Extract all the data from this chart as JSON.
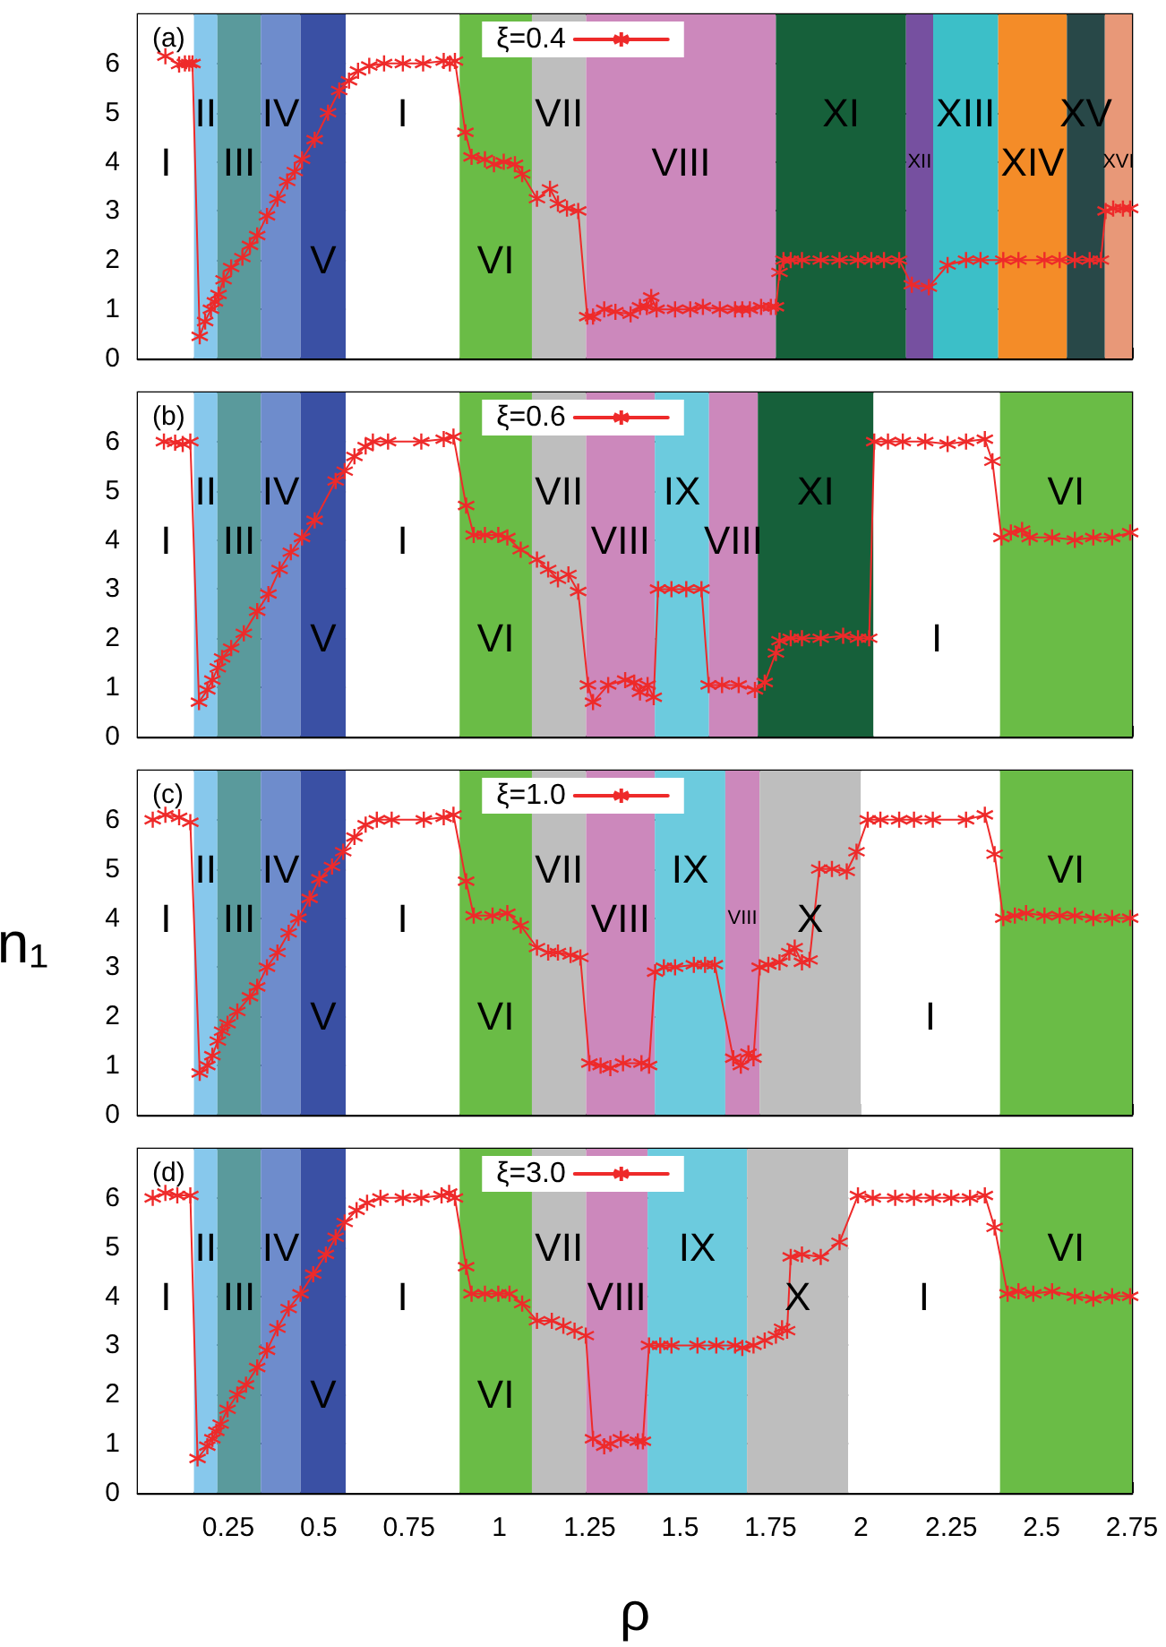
{
  "chart_data": [
    {
      "type": "line",
      "title": "(a)",
      "xlim": [
        0,
        2.75
      ],
      "ylim": [
        0,
        7
      ],
      "xticks": [
        0.25,
        0.5,
        0.75,
        1,
        1.25,
        1.5,
        1.75,
        2,
        2.25,
        2.5,
        2.75
      ],
      "yticks": [
        0,
        1,
        2,
        3,
        4,
        5,
        6
      ],
      "grid": "y",
      "legend": "top",
      "marker": "cross",
      "tick_labels": "y",
      "series": [
        {
          "name": "ξ=0.4",
          "color": "#ee2a2a",
          "x": [
            0.076,
            0.114,
            0.13,
            0.142,
            0.151,
            0.171,
            0.186,
            0.202,
            0.213,
            0.223,
            0.237,
            0.258,
            0.289,
            0.31,
            0.33,
            0.357,
            0.386,
            0.413,
            0.434,
            0.454,
            0.489,
            0.526,
            0.557,
            0.584,
            0.609,
            0.64,
            0.681,
            0.733,
            0.789,
            0.846,
            0.863,
            0.877,
            0.906,
            0.923,
            0.96,
            0.985,
            1.012,
            1.043,
            1.063,
            1.104,
            1.14,
            1.162,
            1.187,
            1.218,
            1.243,
            1.259,
            1.29,
            1.321,
            1.363,
            1.389,
            1.408,
            1.42,
            1.435,
            1.486,
            1.528,
            1.563,
            1.61,
            1.652,
            1.672,
            1.693,
            1.724,
            1.751,
            1.765,
            1.775,
            1.786,
            1.806,
            1.837,
            1.889,
            1.941,
            1.992,
            2.029,
            2.064,
            2.106,
            2.141,
            2.188,
            2.24,
            2.291,
            2.331,
            2.394,
            2.436,
            2.508,
            2.55,
            2.592,
            2.633,
            2.664,
            2.677,
            2.698,
            2.725,
            2.745
          ],
          "values": [
            6.15,
            5.98,
            6,
            6,
            6,
            0.45,
            0.75,
            1,
            1.15,
            1.3,
            1.6,
            1.85,
            2.05,
            2.3,
            2.5,
            2.9,
            3.25,
            3.6,
            3.8,
            4.05,
            4.45,
            5,
            5.45,
            5.65,
            5.85,
            5.95,
            6,
            6,
            6,
            6.05,
            6,
            6.05,
            4.6,
            4.1,
            4.05,
            3.95,
            4,
            3.95,
            3.75,
            3.25,
            3.45,
            3.15,
            3.05,
            3,
            0.85,
            0.85,
            1,
            0.95,
            0.9,
            1.05,
            1.05,
            1.25,
            1,
            1,
            1,
            1.05,
            1,
            1,
            1,
            1,
            1.05,
            1.05,
            1.05,
            1.75,
            2,
            2,
            2,
            2,
            2,
            2,
            2,
            2,
            2,
            1.5,
            1.45,
            1.9,
            2,
            2,
            2,
            2,
            2,
            2,
            2,
            2,
            2,
            3,
            3.05,
            3.05,
            3.05
          ]
        }
      ],
      "bands": [
        {
          "axis": "x",
          "from": 0,
          "to": 0.155,
          "color": "#ffffff",
          "label": "I"
        },
        {
          "axis": "x",
          "from": 0.155,
          "to": 0.22,
          "color": "#87c8ec",
          "label": "II"
        },
        {
          "axis": "x",
          "from": 0.22,
          "to": 0.34,
          "color": "#5a9a9c",
          "label": "III"
        },
        {
          "axis": "x",
          "from": 0.34,
          "to": 0.45,
          "color": "#6e8ccc",
          "label": "IV"
        },
        {
          "axis": "x",
          "from": 0.45,
          "to": 0.575,
          "color": "#3a50a4",
          "label": "V"
        },
        {
          "axis": "x",
          "from": 0.575,
          "to": 0.89,
          "color": "#ffffff",
          "label": "I"
        },
        {
          "axis": "x",
          "from": 0.89,
          "to": 1.09,
          "color": "#6abc46",
          "label": "VI"
        },
        {
          "axis": "x",
          "from": 1.09,
          "to": 1.24,
          "color": "#bebebe",
          "label": "VII"
        },
        {
          "axis": "x",
          "from": 1.24,
          "to": 1.765,
          "color": "#cc88bc",
          "label": "VIII"
        },
        {
          "axis": "x",
          "from": 1.765,
          "to": 2.125,
          "color": "#16603a",
          "label": "XI"
        },
        {
          "axis": "x",
          "from": 2.125,
          "to": 2.2,
          "color": "#7650a0",
          "label": "XII"
        },
        {
          "axis": "x",
          "from": 2.2,
          "to": 2.38,
          "color": "#3cbfc8",
          "label": "XIII"
        },
        {
          "axis": "x",
          "from": 2.38,
          "to": 2.57,
          "color": "#f48c28",
          "label": "XIV"
        },
        {
          "axis": "x",
          "from": 2.57,
          "to": 2.675,
          "color": "#284848",
          "label": "XV"
        },
        {
          "axis": "x",
          "from": 2.675,
          "to": 2.75,
          "color": "#e89878",
          "label": "XVI"
        }
      ]
    },
    {
      "type": "line",
      "title": "(b)",
      "xlim": [
        0,
        2.75
      ],
      "ylim": [
        0,
        7
      ],
      "xticks": [
        0.25,
        0.5,
        0.75,
        1,
        1.25,
        1.5,
        1.75,
        2,
        2.25,
        2.5,
        2.75
      ],
      "yticks": [
        0,
        1,
        2,
        3,
        4,
        5,
        6
      ],
      "grid": "y",
      "legend": "top",
      "marker": "cross",
      "tick_labels": "y",
      "series": [
        {
          "name": "ξ=0.6",
          "color": "#ee2a2a",
          "x": [
            0.072,
            0.103,
            0.124,
            0.145,
            0.169,
            0.192,
            0.206,
            0.221,
            0.233,
            0.258,
            0.293,
            0.33,
            0.361,
            0.392,
            0.423,
            0.454,
            0.489,
            0.547,
            0.572,
            0.599,
            0.63,
            0.65,
            0.692,
            0.784,
            0.846,
            0.873,
            0.908,
            0.929,
            0.96,
            0.997,
            1.022,
            1.059,
            1.104,
            1.135,
            1.162,
            1.191,
            1.218,
            1.245,
            1.259,
            1.301,
            1.348,
            1.373,
            1.389,
            1.41,
            1.427,
            1.439,
            1.476,
            1.517,
            1.559,
            1.579,
            1.616,
            1.662,
            1.707,
            1.734,
            1.765,
            1.775,
            1.806,
            1.837,
            1.889,
            1.951,
            1.992,
            2.023,
            2.037,
            2.075,
            2.116,
            2.178,
            2.24,
            2.291,
            2.343,
            2.364,
            2.389,
            2.415,
            2.446,
            2.467,
            2.529,
            2.592,
            2.643,
            2.695,
            2.745
          ],
          "values": [
            6,
            5.98,
            5.95,
            6,
            0.7,
            0.95,
            1.15,
            1.4,
            1.6,
            1.8,
            2.1,
            2.55,
            2.9,
            3.4,
            3.75,
            4.05,
            4.4,
            5.2,
            5.4,
            5.7,
            5.9,
            6,
            6,
            6,
            6.05,
            6.1,
            4.7,
            4.1,
            4.1,
            4.1,
            4.05,
            3.8,
            3.6,
            3.4,
            3.2,
            3.3,
            2.95,
            1.05,
            0.7,
            1.05,
            1.15,
            1.1,
            0.9,
            1.05,
            0.8,
            3,
            3,
            3,
            3,
            1.05,
            1.05,
            1.05,
            0.95,
            1.1,
            1.7,
            1.95,
            2,
            2,
            2,
            2.05,
            2,
            2,
            6,
            6,
            6,
            6,
            5.95,
            6,
            6.05,
            5.6,
            4.05,
            4.15,
            4.2,
            4.05,
            4.05,
            4,
            4.05,
            4.05,
            4.15
          ]
        }
      ],
      "bands": [
        {
          "axis": "x",
          "from": 0,
          "to": 0.155,
          "color": "#ffffff",
          "label": "I"
        },
        {
          "axis": "x",
          "from": 0.155,
          "to": 0.22,
          "color": "#87c8ec",
          "label": "II"
        },
        {
          "axis": "x",
          "from": 0.22,
          "to": 0.34,
          "color": "#5a9a9c",
          "label": "III"
        },
        {
          "axis": "x",
          "from": 0.34,
          "to": 0.45,
          "color": "#6e8ccc",
          "label": "IV"
        },
        {
          "axis": "x",
          "from": 0.45,
          "to": 0.575,
          "color": "#3a50a4",
          "label": "V"
        },
        {
          "axis": "x",
          "from": 0.575,
          "to": 0.89,
          "color": "#ffffff",
          "label": "I"
        },
        {
          "axis": "x",
          "from": 0.89,
          "to": 1.09,
          "color": "#6abc46",
          "label": "VI"
        },
        {
          "axis": "x",
          "from": 1.09,
          "to": 1.24,
          "color": "#bebebe",
          "label": "VII"
        },
        {
          "axis": "x",
          "from": 1.24,
          "to": 1.43,
          "color": "#cc88bc",
          "label": "VIII"
        },
        {
          "axis": "x",
          "from": 1.43,
          "to": 1.58,
          "color": "#6ccbde",
          "label": "IX"
        },
        {
          "axis": "x",
          "from": 1.58,
          "to": 1.715,
          "color": "#cc88bc",
          "label": "VIII"
        },
        {
          "axis": "x",
          "from": 1.715,
          "to": 2.035,
          "color": "#16603a",
          "label": "XI"
        },
        {
          "axis": "x",
          "from": 2.035,
          "to": 2.385,
          "color": "#ffffff",
          "label": "I"
        },
        {
          "axis": "x",
          "from": 2.385,
          "to": 2.75,
          "color": "#6abc46",
          "label": "VI"
        }
      ]
    },
    {
      "type": "line",
      "title": "(c)",
      "ylabel": "n₁",
      "xlim": [
        0,
        2.75
      ],
      "ylim": [
        0,
        7
      ],
      "xticks": [
        0.25,
        0.5,
        0.75,
        1,
        1.25,
        1.5,
        1.75,
        2,
        2.25,
        2.5,
        2.75
      ],
      "yticks": [
        0,
        1,
        2,
        3,
        4,
        5,
        6
      ],
      "grid": "y",
      "legend": "top",
      "marker": "cross",
      "tick_labels": "y",
      "series": [
        {
          "name": "ξ=1.0",
          "color": "#ee2a2a",
          "x": [
            0.041,
            0.076,
            0.114,
            0.145,
            0.171,
            0.192,
            0.206,
            0.221,
            0.233,
            0.248,
            0.275,
            0.31,
            0.33,
            0.357,
            0.386,
            0.417,
            0.444,
            0.475,
            0.502,
            0.537,
            0.568,
            0.599,
            0.63,
            0.661,
            0.702,
            0.791,
            0.846,
            0.873,
            0.908,
            0.929,
            0.981,
            1.022,
            1.059,
            1.104,
            1.135,
            1.162,
            1.197,
            1.224,
            1.249,
            1.28,
            1.307,
            1.342,
            1.393,
            1.414,
            1.431,
            1.455,
            1.486,
            1.538,
            1.569,
            1.596,
            1.647,
            1.668,
            1.689,
            1.703,
            1.72,
            1.744,
            1.775,
            1.802,
            1.817,
            1.837,
            1.858,
            1.885,
            1.92,
            1.961,
            1.988,
            2.019,
            2.054,
            2.106,
            2.147,
            2.199,
            2.291,
            2.343,
            2.37,
            2.394,
            2.426,
            2.457,
            2.508,
            2.55,
            2.592,
            2.643,
            2.695,
            2.745
          ],
          "values": [
            6,
            6.1,
            6.05,
            5.95,
            0.85,
            1,
            1.2,
            1.5,
            1.7,
            1.85,
            2.1,
            2.4,
            2.6,
            3,
            3.3,
            3.7,
            4,
            4.4,
            4.8,
            5.05,
            5.35,
            5.65,
            5.9,
            6,
            6,
            6,
            6.05,
            6.1,
            4.75,
            4.05,
            4.05,
            4.1,
            3.85,
            3.4,
            3.3,
            3.3,
            3.25,
            3.2,
            1.05,
            1,
            0.95,
            1.05,
            1.05,
            1,
            2.9,
            3,
            3,
            3.05,
            3.05,
            3.05,
            1.15,
            1,
            1.25,
            1.15,
            3,
            3.05,
            3.1,
            3.3,
            3.4,
            3.1,
            3.15,
            5,
            5,
            4.95,
            5.35,
            6,
            6,
            6,
            6,
            6,
            6,
            6.1,
            5.3,
            4,
            4.05,
            4.1,
            4.05,
            4.05,
            4.05,
            4,
            4,
            4
          ]
        }
      ],
      "bands": [
        {
          "axis": "x",
          "from": 0,
          "to": 0.155,
          "color": "#ffffff",
          "label": "I"
        },
        {
          "axis": "x",
          "from": 0.155,
          "to": 0.22,
          "color": "#87c8ec",
          "label": "II"
        },
        {
          "axis": "x",
          "from": 0.22,
          "to": 0.34,
          "color": "#5a9a9c",
          "label": "III"
        },
        {
          "axis": "x",
          "from": 0.34,
          "to": 0.45,
          "color": "#6e8ccc",
          "label": "IV"
        },
        {
          "axis": "x",
          "from": 0.45,
          "to": 0.575,
          "color": "#3a50a4",
          "label": "V"
        },
        {
          "axis": "x",
          "from": 0.575,
          "to": 0.89,
          "color": "#ffffff",
          "label": "I"
        },
        {
          "axis": "x",
          "from": 0.89,
          "to": 1.09,
          "color": "#6abc46",
          "label": "VI"
        },
        {
          "axis": "x",
          "from": 1.09,
          "to": 1.24,
          "color": "#bebebe",
          "label": "VII"
        },
        {
          "axis": "x",
          "from": 1.24,
          "to": 1.43,
          "color": "#cc88bc",
          "label": "VIII"
        },
        {
          "axis": "x",
          "from": 1.43,
          "to": 1.625,
          "color": "#6ccbde",
          "label": "IX"
        },
        {
          "axis": "x",
          "from": 1.625,
          "to": 1.72,
          "color": "#cc88bc",
          "label": "VIII"
        },
        {
          "axis": "x",
          "from": 1.72,
          "to": 2.0,
          "color": "#bebebe",
          "label": "X"
        },
        {
          "axis": "x",
          "from": 2.0,
          "to": 2.385,
          "color": "#ffffff",
          "label": "I"
        },
        {
          "axis": "x",
          "from": 2.385,
          "to": 2.75,
          "color": "#6abc46",
          "label": "VI"
        }
      ]
    },
    {
      "type": "line",
      "title": "(d)",
      "xlabel": "ρ",
      "xlim": [
        0,
        2.75
      ],
      "ylim": [
        0,
        7
      ],
      "xticks": [
        0.25,
        0.5,
        0.75,
        1,
        1.25,
        1.5,
        1.75,
        2,
        2.25,
        2.5,
        2.75
      ],
      "yticks": [
        0,
        1,
        2,
        3,
        4,
        5,
        6
      ],
      "grid": "y",
      "legend": "top",
      "marker": "cross",
      "series": [
        {
          "name": "ξ=3.0",
          "color": "#ee2a2a",
          "x": [
            0.041,
            0.076,
            0.109,
            0.145,
            0.165,
            0.192,
            0.206,
            0.217,
            0.229,
            0.248,
            0.275,
            0.299,
            0.33,
            0.357,
            0.386,
            0.417,
            0.45,
            0.485,
            0.52,
            0.547,
            0.572,
            0.605,
            0.634,
            0.671,
            0.733,
            0.784,
            0.84,
            0.861,
            0.877,
            0.908,
            0.923,
            0.96,
            0.997,
            1.028,
            1.063,
            1.104,
            1.145,
            1.177,
            1.208,
            1.239,
            1.259,
            1.29,
            1.307,
            1.336,
            1.383,
            1.397,
            1.414,
            1.445,
            1.476,
            1.548,
            1.6,
            1.652,
            1.672,
            1.703,
            1.734,
            1.765,
            1.782,
            1.796,
            1.806,
            1.837,
            1.889,
            1.941,
            1.992,
            2.033,
            2.095,
            2.147,
            2.199,
            2.25,
            2.302,
            2.343,
            2.37,
            2.406,
            2.436,
            2.477,
            2.529,
            2.592,
            2.643,
            2.695,
            2.745
          ],
          "values": [
            6,
            6.1,
            6.05,
            6.05,
            0.7,
            0.95,
            1.1,
            1.25,
            1.4,
            1.7,
            2,
            2.2,
            2.55,
            2.9,
            3.35,
            3.75,
            4.05,
            4.45,
            4.85,
            5.2,
            5.5,
            5.75,
            5.9,
            6,
            6,
            6,
            6.05,
            6.1,
            6,
            4.6,
            4.05,
            4.05,
            4.05,
            4.05,
            3.85,
            3.5,
            3.5,
            3.4,
            3.3,
            3.2,
            1.1,
            0.95,
            1,
            1.1,
            1.05,
            1.05,
            3,
            3,
            3,
            3,
            3,
            3,
            2.95,
            3,
            3.1,
            3.2,
            3.35,
            3.3,
            4.8,
            4.85,
            4.8,
            5.1,
            6.05,
            6,
            6,
            6,
            6,
            6,
            6,
            6.05,
            5.4,
            4.05,
            4.1,
            4.05,
            4.1,
            4,
            3.95,
            4,
            4
          ]
        }
      ],
      "bands": [
        {
          "axis": "x",
          "from": 0,
          "to": 0.155,
          "color": "#ffffff",
          "label": "I"
        },
        {
          "axis": "x",
          "from": 0.155,
          "to": 0.22,
          "color": "#87c8ec",
          "label": "II"
        },
        {
          "axis": "x",
          "from": 0.22,
          "to": 0.34,
          "color": "#5a9a9c",
          "label": "III"
        },
        {
          "axis": "x",
          "from": 0.34,
          "to": 0.45,
          "color": "#6e8ccc",
          "label": "IV"
        },
        {
          "axis": "x",
          "from": 0.45,
          "to": 0.575,
          "color": "#3a50a4",
          "label": "V"
        },
        {
          "axis": "x",
          "from": 0.575,
          "to": 0.89,
          "color": "#ffffff",
          "label": "I"
        },
        {
          "axis": "x",
          "from": 0.89,
          "to": 1.09,
          "color": "#6abc46",
          "label": "VI"
        },
        {
          "axis": "x",
          "from": 1.09,
          "to": 1.24,
          "color": "#bebebe",
          "label": "VII"
        },
        {
          "axis": "x",
          "from": 1.24,
          "to": 1.41,
          "color": "#cc88bc",
          "label": "VIII"
        },
        {
          "axis": "x",
          "from": 1.41,
          "to": 1.685,
          "color": "#6ccbde",
          "label": "IX"
        },
        {
          "axis": "x",
          "from": 1.685,
          "to": 1.965,
          "color": "#bebebe",
          "label": "X"
        },
        {
          "axis": "x",
          "from": 1.965,
          "to": 2.385,
          "color": "#ffffff",
          "label": "I"
        },
        {
          "axis": "x",
          "from": 2.385,
          "to": 2.75,
          "color": "#6abc46",
          "label": "VI"
        }
      ]
    }
  ]
}
